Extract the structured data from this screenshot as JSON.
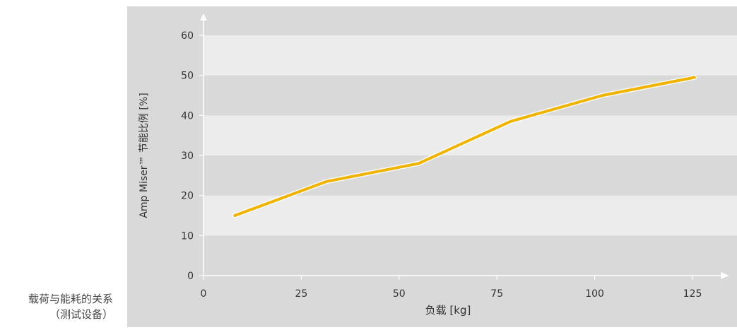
{
  "caption": {
    "line1": "载荷与能耗的关系",
    "line2": "（测试设备）"
  },
  "colors": {
    "panel_bg": "#d9d9d9",
    "band_light": "#ececec",
    "band_dark": "#d9d9d9",
    "line": "#f0b400",
    "line_glow": "#ffffff",
    "axis": "#ffffff",
    "text": "#333333"
  },
  "chart_data": {
    "type": "line",
    "title": "",
    "xlabel": "负载 [kg]",
    "ylabel": "Amp Miser™ 节能比例 [%]",
    "xlim": [
      0,
      125
    ],
    "ylim": [
      0,
      60
    ],
    "x_ticks": [
      0,
      25,
      50,
      75,
      100,
      125
    ],
    "y_ticks": [
      0,
      10,
      20,
      30,
      40,
      50,
      60
    ],
    "grid": "alternating horizontal bands",
    "series": [
      {
        "name": "",
        "x": [
          8,
          31.5,
          55,
          78.5,
          102,
          125.5
        ],
        "y": [
          15,
          23.5,
          28,
          38.5,
          45,
          49.5
        ]
      }
    ]
  }
}
